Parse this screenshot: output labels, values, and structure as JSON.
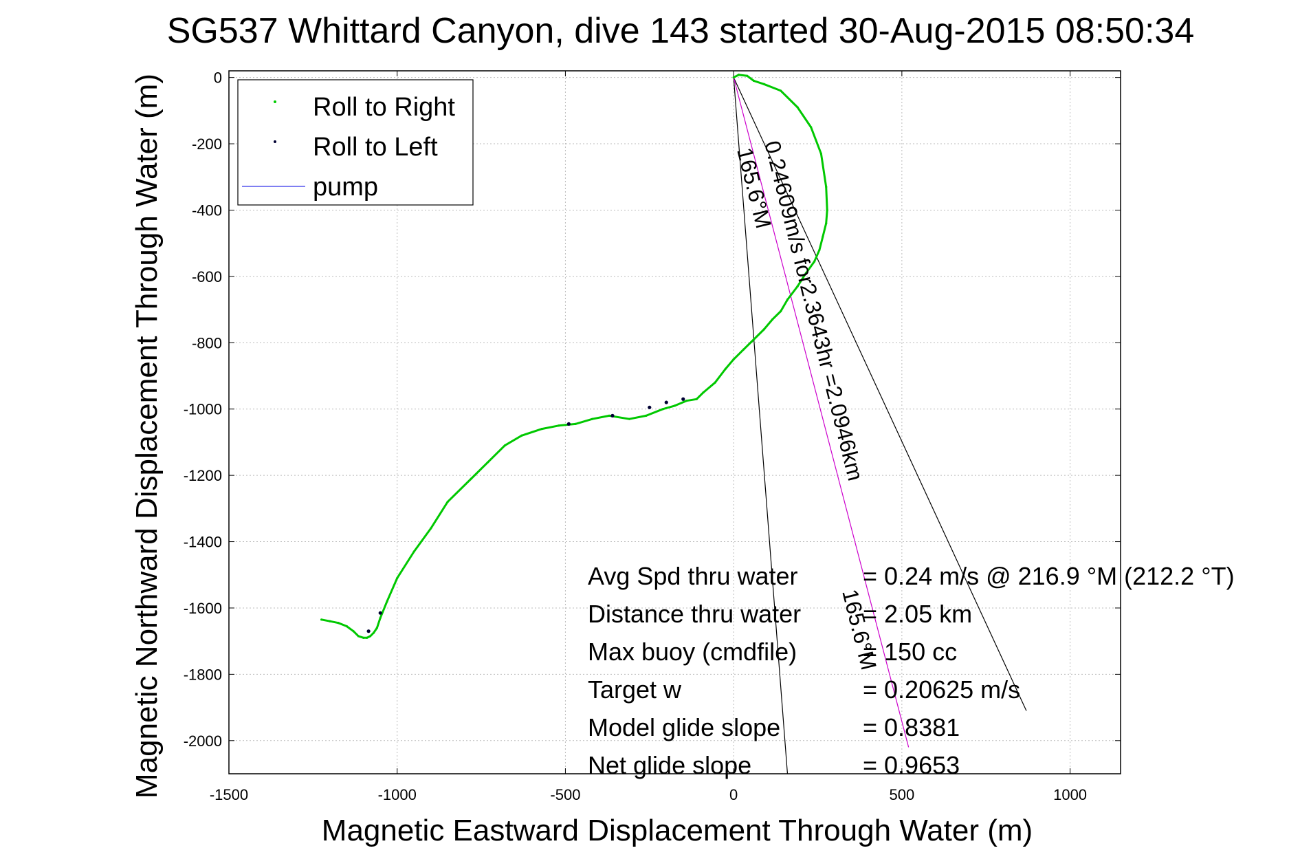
{
  "chart_data": {
    "type": "line",
    "title": "SG537 Whittard Canyon, dive 143 started 30-Aug-2015 08:50:34",
    "xlabel": "Magnetic Eastward Displacement Through Water (m)",
    "ylabel": "Magnetic Northward Displacement Through Water (m)",
    "xlim": [
      -1500,
      1150
    ],
    "ylim": [
      -2100,
      20
    ],
    "xticks": [
      -1500,
      -1000,
      -500,
      0,
      500,
      1000
    ],
    "yticks": [
      0,
      -200,
      -400,
      -600,
      -800,
      -1000,
      -1200,
      -1400,
      -1600,
      -1800,
      -2000
    ],
    "grid": true,
    "legend": {
      "placement": "top-left",
      "entries": [
        {
          "label": "Roll to Right",
          "color": "#00cc00",
          "marker": "dot"
        },
        {
          "label": "Roll to Left",
          "color": "#000033",
          "marker": "dot"
        },
        {
          "label": "pump",
          "color": "#5555ee",
          "marker": "line"
        }
      ]
    },
    "series": [
      {
        "name": "Roll to Right",
        "color": "#00c800",
        "x": [
          0,
          15,
          40,
          60,
          90,
          140,
          190,
          230,
          260,
          275,
          278,
          275,
          265,
          255,
          240,
          215,
          190,
          160,
          140,
          115,
          90,
          60,
          30,
          0,
          -25,
          -55,
          -90,
          -110,
          -140,
          -175,
          -210,
          -260,
          -310,
          -370,
          -420,
          -470,
          -520,
          -570,
          -630,
          -680,
          -730,
          -780,
          -850,
          -900,
          -950,
          -1000,
          -1030,
          -1050,
          -1060,
          -1070,
          -1080,
          -1090,
          -1100,
          -1115,
          -1130,
          -1150,
          -1175,
          -1200,
          -1225
        ],
        "y": [
          0,
          8,
          5,
          -10,
          -20,
          -40,
          -90,
          -150,
          -230,
          -330,
          -400,
          -440,
          -480,
          -520,
          -555,
          -590,
          -630,
          -670,
          -705,
          -730,
          -760,
          -790,
          -820,
          -850,
          -880,
          -920,
          -950,
          -970,
          -975,
          -990,
          -1000,
          -1020,
          -1030,
          -1020,
          -1030,
          -1045,
          -1050,
          -1060,
          -1080,
          -1110,
          -1160,
          -1210,
          -1280,
          -1360,
          -1430,
          -1510,
          -1580,
          -1630,
          -1660,
          -1675,
          -1685,
          -1690,
          -1690,
          -1685,
          -1670,
          -1655,
          -1645,
          -1640,
          -1635
        ]
      },
      {
        "name": "Roll to Left",
        "color": "#000033",
        "x": [
          -150,
          -200,
          -250,
          -360,
          -490,
          -1050,
          -1085
        ],
        "y": [
          -970,
          -980,
          -995,
          -1020,
          -1045,
          -1615,
          -1670
        ]
      }
    ],
    "lines": [
      {
        "from": [
          0,
          0
        ],
        "to": [
          870,
          -1910
        ],
        "color": "#000000"
      },
      {
        "from": [
          0,
          0
        ],
        "to": [
          160,
          -2100
        ],
        "color": "#000000"
      },
      {
        "from": [
          0,
          0
        ],
        "to": [
          520,
          -2020
        ],
        "color": "#cc00cc"
      }
    ],
    "annotations": {
      "rotated_label_1": "0.24609m/s for2.3643hr =2.0946km",
      "rotated_label_2": "165.6°M",
      "rotated_label_3": "165.6°M",
      "stats": [
        {
          "label": "Avg Spd thru water",
          "value": "=  0.24 m/s @ 216.9 °M (212.2 °T)"
        },
        {
          "label": "Distance thru water",
          "value": "=  2.05 km"
        },
        {
          "label": "Max buoy (cmdfile)",
          "value": "=  150 cc"
        },
        {
          "label": "Target w",
          "value": "= 0.20625 m/s"
        },
        {
          "label": "Model glide slope",
          "value": "= 0.8381"
        },
        {
          "label": "Net glide slope",
          "value": "= 0.9653"
        }
      ]
    }
  }
}
